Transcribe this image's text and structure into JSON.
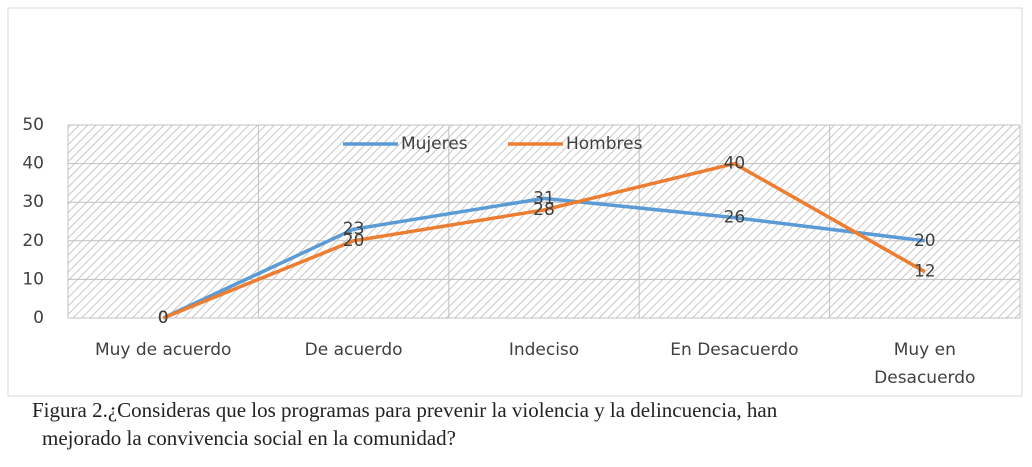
{
  "chart_data": {
    "type": "line",
    "categories": [
      "Muy de acuerdo",
      "De acuerdo",
      "Indeciso",
      "En Desacuerdo",
      "Muy en Desacuerdo"
    ],
    "series": [
      {
        "name": "Mujeres",
        "color": "#5b9bd5",
        "values": [
          0,
          23,
          31,
          26,
          20
        ]
      },
      {
        "name": "Hombres",
        "color": "#ed7d31",
        "values": [
          0,
          20,
          28,
          40,
          12
        ]
      }
    ],
    "ylim": [
      0,
      50
    ],
    "yticks": [
      0,
      10,
      20,
      30,
      40,
      50
    ],
    "grid": true,
    "legend": "top",
    "caption": "Figura 2.¿Consideras que los programas para prevenir la violencia y la delincuencia, han mejorado la convivencia social en la comunidad?"
  }
}
